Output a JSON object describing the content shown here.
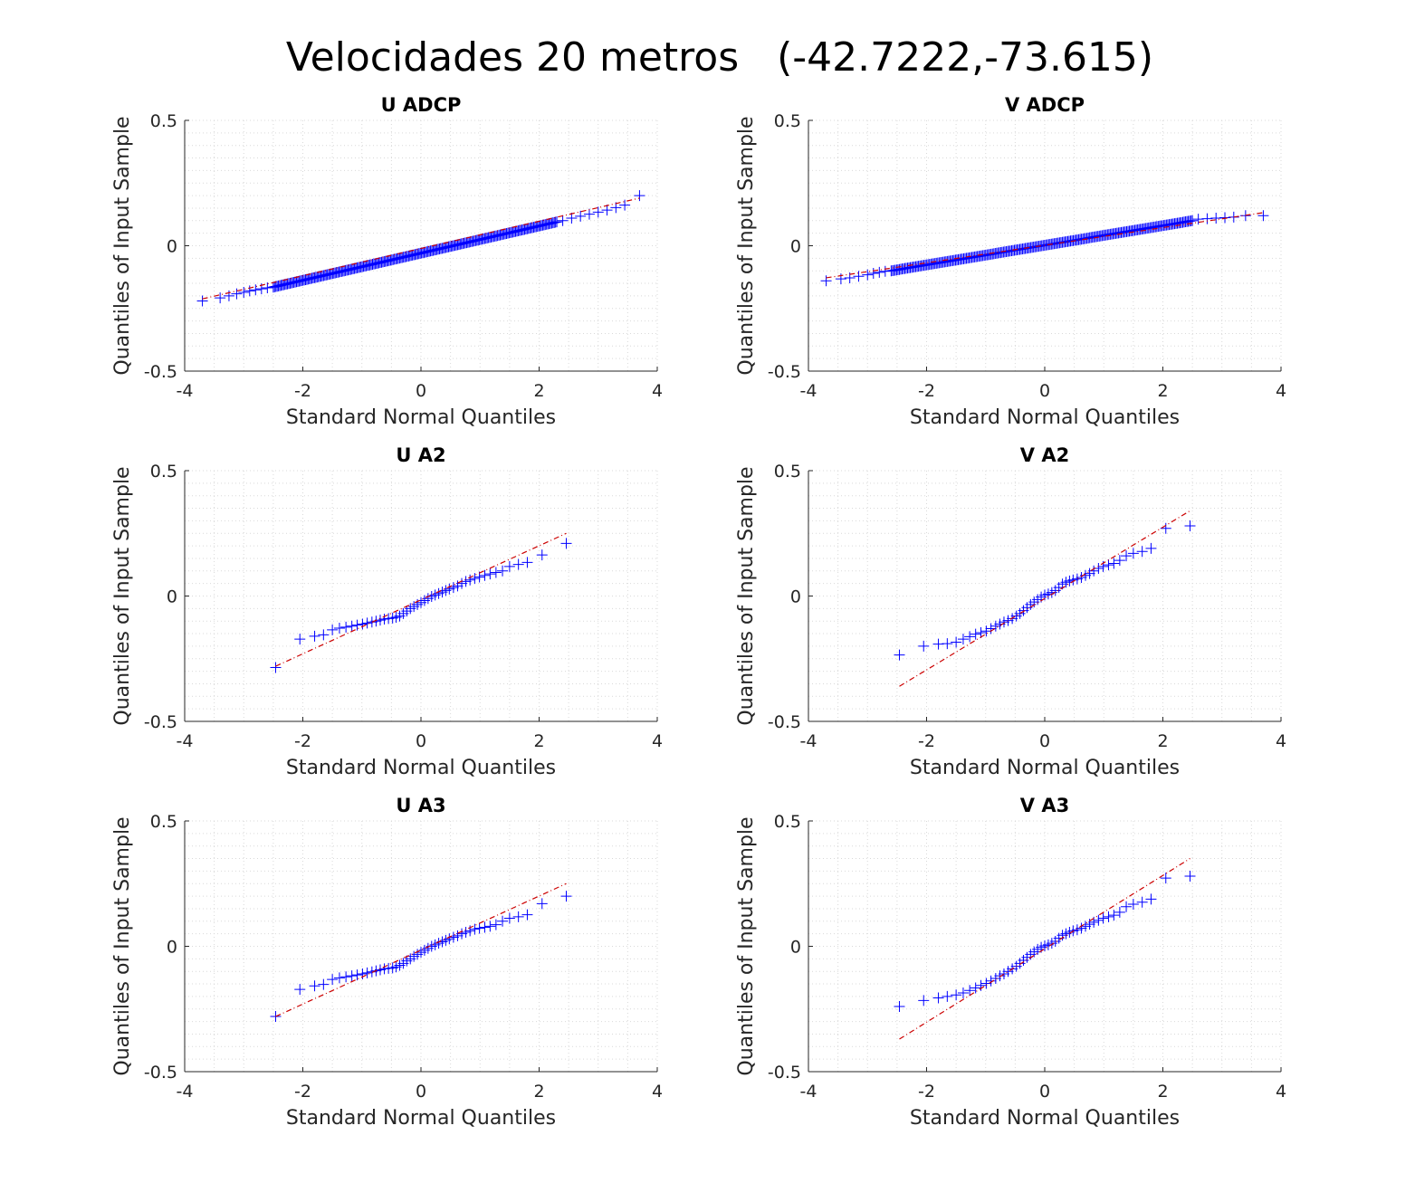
{
  "figure": {
    "title": "Velocidades 20 metros   (-42.7222,-73.615)"
  },
  "colors": {
    "marker": "#0000ff",
    "reference_line": "#cc0000",
    "grid": "#d9d9d9",
    "axis": "#262626"
  },
  "chart_data": [
    {
      "type": "scatter",
      "subtype": "qq-plot",
      "title": "U ADCP",
      "xlabel": "Standard Normal Quantiles",
      "ylabel": "Quantiles of Input Sample",
      "xlim": [
        -4,
        4
      ],
      "ylim": [
        -0.5,
        0.5
      ],
      "xticks": [
        "-4",
        "-2",
        "0",
        "2",
        "4"
      ],
      "yticks": [
        "-0.5",
        "0",
        "0.5"
      ],
      "grid": true,
      "minor_grid": true,
      "dense_sample": true,
      "sample_range": {
        "x": [
          -2.5,
          2.3
        ],
        "y": [
          -0.165,
          0.095
        ]
      },
      "points": [
        [
          -3.7,
          -0.22
        ],
        [
          -3.4,
          -0.208
        ],
        [
          -3.25,
          -0.2
        ],
        [
          -3.12,
          -0.192
        ],
        [
          -3.0,
          -0.186
        ],
        [
          -2.9,
          -0.18
        ],
        [
          -2.8,
          -0.176
        ],
        [
          -2.7,
          -0.172
        ],
        [
          -2.6,
          -0.168
        ],
        [
          2.4,
          0.1
        ],
        [
          2.55,
          0.11
        ],
        [
          2.7,
          0.118
        ],
        [
          2.85,
          0.126
        ],
        [
          3.0,
          0.134
        ],
        [
          3.15,
          0.142
        ],
        [
          3.3,
          0.152
        ],
        [
          3.45,
          0.162
        ],
        [
          3.7,
          0.2
        ]
      ],
      "reference_line": {
        "x": [
          -3.7,
          3.7
        ],
        "y": [
          -0.212,
          0.19
        ]
      }
    },
    {
      "type": "scatter",
      "subtype": "qq-plot",
      "title": "V ADCP",
      "xlabel": "Standard Normal Quantiles",
      "ylabel": "Quantiles of Input Sample",
      "xlim": [
        -4,
        4
      ],
      "ylim": [
        -0.5,
        0.5
      ],
      "xticks": [
        "-4",
        "-2",
        "0",
        "2",
        "4"
      ],
      "yticks": [
        "-0.5",
        "0",
        "0.5"
      ],
      "grid": true,
      "minor_grid": true,
      "dense_sample": true,
      "sample_range": {
        "x": [
          -2.6,
          2.5
        ],
        "y": [
          -0.1,
          0.1
        ]
      },
      "points": [
        [
          -3.7,
          -0.14
        ],
        [
          -3.45,
          -0.132
        ],
        [
          -3.3,
          -0.128
        ],
        [
          -3.15,
          -0.122
        ],
        [
          -3.0,
          -0.116
        ],
        [
          -2.9,
          -0.11
        ],
        [
          -2.8,
          -0.106
        ],
        [
          -2.7,
          -0.102
        ],
        [
          2.6,
          0.106
        ],
        [
          2.75,
          0.108
        ],
        [
          2.9,
          0.11
        ],
        [
          3.05,
          0.112
        ],
        [
          3.2,
          0.114
        ],
        [
          3.4,
          0.12
        ],
        [
          3.7,
          0.12
        ]
      ],
      "reference_line": {
        "x": [
          -3.7,
          3.7
        ],
        "y": [
          -0.128,
          0.132
        ]
      }
    },
    {
      "type": "scatter",
      "subtype": "qq-plot",
      "title": "U A2",
      "xlabel": "Standard Normal Quantiles",
      "ylabel": "Quantiles of Input Sample",
      "xlim": [
        -4,
        4
      ],
      "ylim": [
        -0.5,
        0.5
      ],
      "xticks": [
        "-4",
        "-2",
        "0",
        "2",
        "4"
      ],
      "yticks": [
        "-0.5",
        "0",
        "0.5"
      ],
      "grid": true,
      "minor_grid": true,
      "dense_sample": false,
      "points": [
        [
          -2.46,
          -0.285
        ],
        [
          -2.05,
          -0.172
        ],
        [
          -1.8,
          -0.16
        ],
        [
          -1.65,
          -0.155
        ],
        [
          -1.5,
          -0.135
        ],
        [
          -1.38,
          -0.128
        ],
        [
          -1.27,
          -0.124
        ],
        [
          -1.17,
          -0.12
        ],
        [
          -1.08,
          -0.116
        ],
        [
          -0.99,
          -0.112
        ],
        [
          -0.91,
          -0.108
        ],
        [
          -0.83,
          -0.104
        ],
        [
          -0.76,
          -0.1
        ],
        [
          -0.69,
          -0.096
        ],
        [
          -0.62,
          -0.092
        ],
        [
          -0.55,
          -0.09
        ],
        [
          -0.48,
          -0.088
        ],
        [
          -0.42,
          -0.085
        ],
        [
          -0.36,
          -0.08
        ],
        [
          -0.3,
          -0.07
        ],
        [
          -0.24,
          -0.06
        ],
        [
          -0.18,
          -0.05
        ],
        [
          -0.12,
          -0.042
        ],
        [
          -0.06,
          -0.034
        ],
        [
          0.0,
          -0.026
        ],
        [
          0.06,
          -0.018
        ],
        [
          0.12,
          -0.01
        ],
        [
          0.18,
          -0.002
        ],
        [
          0.24,
          0.004
        ],
        [
          0.3,
          0.01
        ],
        [
          0.36,
          0.016
        ],
        [
          0.42,
          0.022
        ],
        [
          0.48,
          0.028
        ],
        [
          0.55,
          0.034
        ],
        [
          0.62,
          0.04
        ],
        [
          0.69,
          0.05
        ],
        [
          0.76,
          0.058
        ],
        [
          0.83,
          0.064
        ],
        [
          0.91,
          0.07
        ],
        [
          0.99,
          0.076
        ],
        [
          1.08,
          0.082
        ],
        [
          1.17,
          0.088
        ],
        [
          1.27,
          0.094
        ],
        [
          1.38,
          0.1
        ],
        [
          1.5,
          0.118
        ],
        [
          1.65,
          0.126
        ],
        [
          1.8,
          0.134
        ],
        [
          2.05,
          0.164
        ],
        [
          2.46,
          0.21
        ]
      ],
      "reference_line": {
        "x": [
          -2.46,
          2.46
        ],
        "y": [
          -0.28,
          0.25
        ]
      }
    },
    {
      "type": "scatter",
      "subtype": "qq-plot",
      "title": "V A2",
      "xlabel": "Standard Normal Quantiles",
      "ylabel": "Quantiles of Input Sample",
      "xlim": [
        -4,
        4
      ],
      "ylim": [
        -0.5,
        0.5
      ],
      "xticks": [
        "-4",
        "-2",
        "0",
        "2",
        "4"
      ],
      "yticks": [
        "-0.5",
        "0",
        "0.5"
      ],
      "grid": true,
      "minor_grid": true,
      "dense_sample": false,
      "points": [
        [
          -2.46,
          -0.235
        ],
        [
          -2.05,
          -0.2
        ],
        [
          -1.8,
          -0.192
        ],
        [
          -1.65,
          -0.19
        ],
        [
          -1.5,
          -0.184
        ],
        [
          -1.38,
          -0.172
        ],
        [
          -1.27,
          -0.162
        ],
        [
          -1.17,
          -0.152
        ],
        [
          -1.08,
          -0.146
        ],
        [
          -0.99,
          -0.14
        ],
        [
          -0.91,
          -0.13
        ],
        [
          -0.83,
          -0.12
        ],
        [
          -0.76,
          -0.112
        ],
        [
          -0.69,
          -0.104
        ],
        [
          -0.62,
          -0.098
        ],
        [
          -0.55,
          -0.09
        ],
        [
          -0.48,
          -0.08
        ],
        [
          -0.42,
          -0.07
        ],
        [
          -0.36,
          -0.058
        ],
        [
          -0.3,
          -0.046
        ],
        [
          -0.24,
          -0.034
        ],
        [
          -0.18,
          -0.024
        ],
        [
          -0.12,
          -0.014
        ],
        [
          -0.06,
          -0.004
        ],
        [
          0.0,
          0.004
        ],
        [
          0.06,
          0.008
        ],
        [
          0.12,
          0.014
        ],
        [
          0.18,
          0.022
        ],
        [
          0.24,
          0.034
        ],
        [
          0.3,
          0.048
        ],
        [
          0.36,
          0.055
        ],
        [
          0.42,
          0.06
        ],
        [
          0.48,
          0.064
        ],
        [
          0.55,
          0.068
        ],
        [
          0.62,
          0.074
        ],
        [
          0.69,
          0.082
        ],
        [
          0.76,
          0.09
        ],
        [
          0.83,
          0.1
        ],
        [
          0.91,
          0.11
        ],
        [
          0.99,
          0.118
        ],
        [
          1.08,
          0.124
        ],
        [
          1.17,
          0.13
        ],
        [
          1.27,
          0.142
        ],
        [
          1.38,
          0.16
        ],
        [
          1.5,
          0.17
        ],
        [
          1.65,
          0.178
        ],
        [
          1.8,
          0.19
        ],
        [
          2.05,
          0.27
        ],
        [
          2.46,
          0.28
        ]
      ],
      "reference_line": {
        "x": [
          -2.46,
          2.46
        ],
        "y": [
          -0.36,
          0.34
        ]
      }
    },
    {
      "type": "scatter",
      "subtype": "qq-plot",
      "title": "U A3",
      "xlabel": "Standard Normal Quantiles",
      "ylabel": "Quantiles of Input Sample",
      "xlim": [
        -4,
        4
      ],
      "ylim": [
        -0.5,
        0.5
      ],
      "xticks": [
        "-4",
        "-2",
        "0",
        "2",
        "4"
      ],
      "yticks": [
        "-0.5",
        "0",
        "0.5"
      ],
      "grid": true,
      "minor_grid": true,
      "dense_sample": false,
      "points": [
        [
          -2.46,
          -0.28
        ],
        [
          -2.05,
          -0.172
        ],
        [
          -1.8,
          -0.158
        ],
        [
          -1.65,
          -0.152
        ],
        [
          -1.5,
          -0.132
        ],
        [
          -1.38,
          -0.126
        ],
        [
          -1.27,
          -0.122
        ],
        [
          -1.17,
          -0.118
        ],
        [
          -1.08,
          -0.114
        ],
        [
          -0.99,
          -0.11
        ],
        [
          -0.91,
          -0.106
        ],
        [
          -0.83,
          -0.102
        ],
        [
          -0.76,
          -0.098
        ],
        [
          -0.69,
          -0.094
        ],
        [
          -0.62,
          -0.09
        ],
        [
          -0.55,
          -0.088
        ],
        [
          -0.48,
          -0.086
        ],
        [
          -0.42,
          -0.082
        ],
        [
          -0.36,
          -0.076
        ],
        [
          -0.3,
          -0.068
        ],
        [
          -0.24,
          -0.058
        ],
        [
          -0.18,
          -0.05
        ],
        [
          -0.12,
          -0.04
        ],
        [
          -0.06,
          -0.032
        ],
        [
          0.0,
          -0.024
        ],
        [
          0.06,
          -0.016
        ],
        [
          0.12,
          -0.008
        ],
        [
          0.18,
          0.0
        ],
        [
          0.24,
          0.006
        ],
        [
          0.3,
          0.012
        ],
        [
          0.36,
          0.018
        ],
        [
          0.42,
          0.024
        ],
        [
          0.48,
          0.03
        ],
        [
          0.55,
          0.036
        ],
        [
          0.62,
          0.042
        ],
        [
          0.69,
          0.05
        ],
        [
          0.76,
          0.056
        ],
        [
          0.83,
          0.062
        ],
        [
          0.91,
          0.068
        ],
        [
          0.99,
          0.072
        ],
        [
          1.08,
          0.076
        ],
        [
          1.17,
          0.08
        ],
        [
          1.27,
          0.086
        ],
        [
          1.38,
          0.1
        ],
        [
          1.5,
          0.112
        ],
        [
          1.65,
          0.118
        ],
        [
          1.8,
          0.126
        ],
        [
          2.05,
          0.17
        ],
        [
          2.46,
          0.2
        ]
      ],
      "reference_line": {
        "x": [
          -2.46,
          2.46
        ],
        "y": [
          -0.28,
          0.25
        ]
      }
    },
    {
      "type": "scatter",
      "subtype": "qq-plot",
      "title": "V A3",
      "xlabel": "Standard Normal Quantiles",
      "ylabel": "Quantiles of Input Sample",
      "xlim": [
        -4,
        4
      ],
      "ylim": [
        -0.5,
        0.5
      ],
      "xticks": [
        "-4",
        "-2",
        "0",
        "2",
        "4"
      ],
      "yticks": [
        "-0.5",
        "0",
        "0.5"
      ],
      "grid": true,
      "minor_grid": true,
      "dense_sample": false,
      "points": [
        [
          -2.46,
          -0.24
        ],
        [
          -2.05,
          -0.216
        ],
        [
          -1.8,
          -0.206
        ],
        [
          -1.65,
          -0.2
        ],
        [
          -1.5,
          -0.194
        ],
        [
          -1.38,
          -0.186
        ],
        [
          -1.27,
          -0.176
        ],
        [
          -1.17,
          -0.166
        ],
        [
          -1.08,
          -0.156
        ],
        [
          -0.99,
          -0.148
        ],
        [
          -0.91,
          -0.138
        ],
        [
          -0.83,
          -0.128
        ],
        [
          -0.76,
          -0.118
        ],
        [
          -0.69,
          -0.11
        ],
        [
          -0.62,
          -0.1
        ],
        [
          -0.55,
          -0.09
        ],
        [
          -0.48,
          -0.08
        ],
        [
          -0.42,
          -0.068
        ],
        [
          -0.36,
          -0.056
        ],
        [
          -0.3,
          -0.044
        ],
        [
          -0.24,
          -0.032
        ],
        [
          -0.18,
          -0.022
        ],
        [
          -0.12,
          -0.012
        ],
        [
          -0.06,
          -0.004
        ],
        [
          0.0,
          0.002
        ],
        [
          0.06,
          0.006
        ],
        [
          0.12,
          0.012
        ],
        [
          0.18,
          0.02
        ],
        [
          0.24,
          0.032
        ],
        [
          0.3,
          0.044
        ],
        [
          0.36,
          0.05
        ],
        [
          0.42,
          0.056
        ],
        [
          0.48,
          0.062
        ],
        [
          0.55,
          0.066
        ],
        [
          0.62,
          0.072
        ],
        [
          0.69,
          0.08
        ],
        [
          0.76,
          0.088
        ],
        [
          0.83,
          0.096
        ],
        [
          0.91,
          0.104
        ],
        [
          0.99,
          0.112
        ],
        [
          1.08,
          0.118
        ],
        [
          1.17,
          0.124
        ],
        [
          1.27,
          0.136
        ],
        [
          1.38,
          0.158
        ],
        [
          1.5,
          0.168
        ],
        [
          1.65,
          0.176
        ],
        [
          1.8,
          0.188
        ],
        [
          2.05,
          0.272
        ],
        [
          2.46,
          0.28
        ]
      ],
      "reference_line": {
        "x": [
          -2.46,
          2.46
        ],
        "y": [
          -0.37,
          0.35
        ]
      }
    }
  ]
}
